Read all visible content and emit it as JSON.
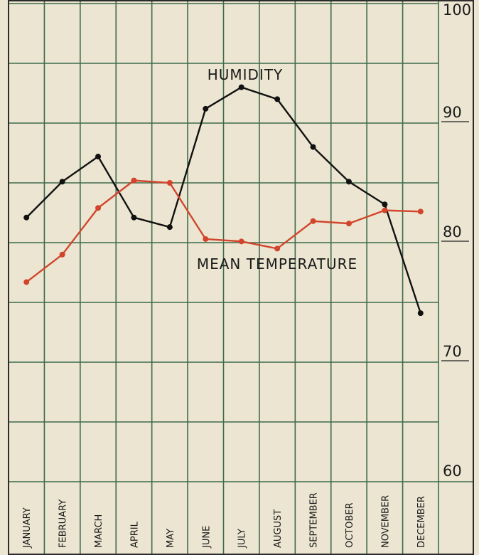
{
  "chart_data": {
    "type": "line",
    "categories": [
      "JANUARY",
      "FEBRUARY",
      "MARCH",
      "APRIL",
      "MAY",
      "JUNE",
      "JULY",
      "AUGUST",
      "SEPTEMBER",
      "OCTOBER",
      "NOVEMBER",
      "DECEMBER"
    ],
    "series": [
      {
        "name": "HUMIDITY",
        "color": "#111111",
        "values": [
          82.1,
          85.1,
          87.2,
          82.1,
          81.3,
          91.2,
          93.0,
          92.0,
          88.0,
          85.1,
          83.2,
          74.1
        ]
      },
      {
        "name": "MEAN TEMPERATURE",
        "color": "#d2452c",
        "values": [
          76.7,
          79.0,
          82.9,
          85.2,
          85.0,
          80.3,
          80.1,
          79.5,
          81.8,
          81.6,
          82.7,
          82.6
        ]
      }
    ],
    "ylim": [
      60,
      100
    ],
    "yticks": [
      60,
      70,
      80,
      90,
      100
    ],
    "yminor_ticks": [
      65,
      75,
      85,
      95
    ],
    "grid": true
  }
}
